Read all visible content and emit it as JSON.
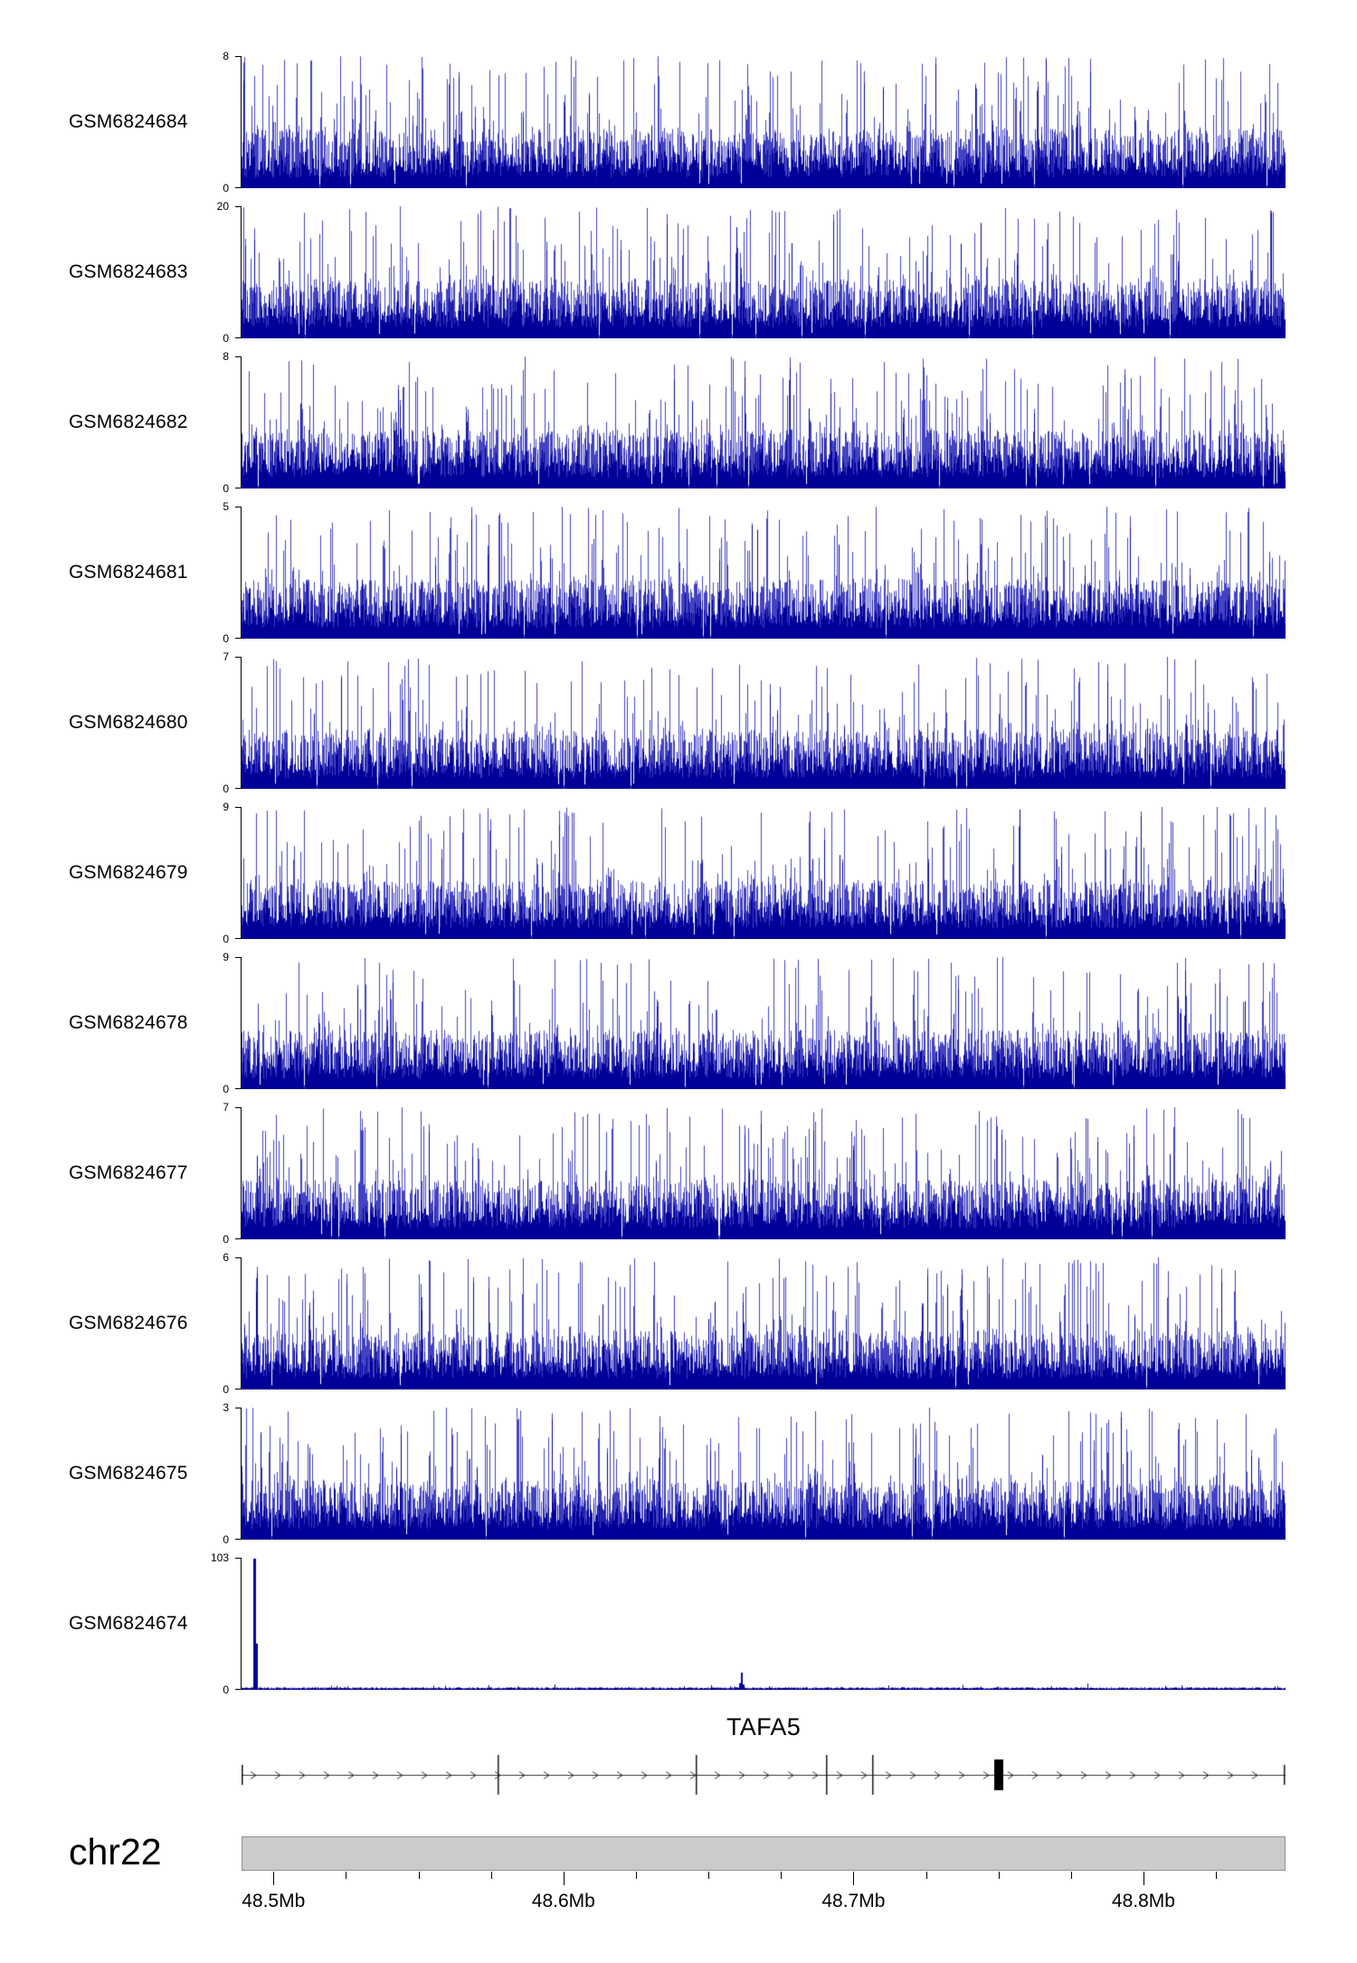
{
  "chart_data": {
    "type": "area",
    "description": "Genome browser read-coverage tracks over chr22 48.49-48.85 Mb with TAFA5 gene model and chromosome axis",
    "tracks": [
      {
        "label": "GSM6824684",
        "ymin": 0,
        "ymax": 8,
        "seed": 11
      },
      {
        "label": "GSM6824683",
        "ymin": 0,
        "ymax": 20,
        "seed": 23
      },
      {
        "label": "GSM6824682",
        "ymin": 0,
        "ymax": 8,
        "seed": 37
      },
      {
        "label": "GSM6824681",
        "ymin": 0,
        "ymax": 5,
        "seed": 41
      },
      {
        "label": "GSM6824680",
        "ymin": 0,
        "ymax": 7,
        "seed": 53
      },
      {
        "label": "GSM6824679",
        "ymin": 0,
        "ymax": 9,
        "seed": 67
      },
      {
        "label": "GSM6824678",
        "ymin": 0,
        "ymax": 9,
        "seed": 71
      },
      {
        "label": "GSM6824677",
        "ymin": 0,
        "ymax": 7,
        "seed": 83
      },
      {
        "label": "GSM6824676",
        "ymin": 0,
        "ymax": 6,
        "seed": 97
      },
      {
        "label": "GSM6824675",
        "ymin": 0,
        "ymax": 3,
        "seed": 101
      },
      {
        "label": "GSM6824674",
        "ymin": 0,
        "ymax": 103,
        "seed": 113,
        "sparse": true,
        "main_spike_fraction": 0.012,
        "secondary_spike_fraction": 0.478
      }
    ],
    "gene_track": {
      "name": "TAFA5",
      "strand": "+",
      "exon_fractions": [
        0.0,
        0.245,
        0.435,
        0.56,
        0.604,
        1.0
      ],
      "thick_exon": {
        "fraction": 0.725
      }
    },
    "axis": {
      "chromosome": "chr22",
      "range_mb": [
        48.489,
        48.849
      ],
      "minor_step_mb": 0.025,
      "major_ticks": [
        {
          "pos": 48.5,
          "label": "48.5Mb"
        },
        {
          "pos": 48.6,
          "label": "48.6Mb"
        },
        {
          "pos": 48.7,
          "label": "48.7Mb"
        },
        {
          "pos": 48.8,
          "label": "48.8Mb"
        }
      ]
    }
  },
  "colors": {
    "signal_dark": "#000099",
    "signal_mid": "#4242C2",
    "gene_line": "#333333",
    "ideogram_fill": "#cbcbcb",
    "ideogram_border": "#919191"
  }
}
